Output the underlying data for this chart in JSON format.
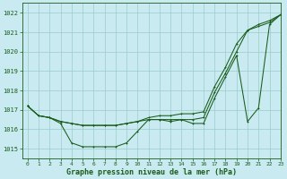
{
  "title": "Graphe pression niveau de la mer (hPa)",
  "bg_color": "#c8eaf0",
  "grid_color": "#99cccc",
  "line_color": "#1a5c1a",
  "marker_color": "#1a5c1a",
  "xlim": [
    -0.5,
    23
  ],
  "ylim": [
    1014.5,
    1022.5
  ],
  "xticks": [
    0,
    1,
    2,
    3,
    4,
    5,
    6,
    7,
    8,
    9,
    10,
    11,
    12,
    13,
    14,
    15,
    16,
    17,
    18,
    19,
    20,
    21,
    22,
    23
  ],
  "yticks": [
    1015,
    1016,
    1017,
    1018,
    1019,
    1020,
    1021,
    1022
  ],
  "series1_x": [
    0,
    1,
    2,
    3,
    4,
    5,
    6,
    7,
    8,
    9,
    10,
    11,
    12,
    13,
    14,
    15,
    16,
    17,
    18,
    19,
    20,
    21,
    22,
    23
  ],
  "series1_y": [
    1017.2,
    1016.7,
    1016.6,
    1016.4,
    1016.3,
    1016.2,
    1016.2,
    1016.2,
    1016.2,
    1016.3,
    1016.4,
    1016.5,
    1016.5,
    1016.5,
    1016.5,
    1016.5,
    1016.6,
    1017.9,
    1018.9,
    1020.0,
    1021.1,
    1021.3,
    1021.5,
    1021.9
  ],
  "series2_x": [
    0,
    1,
    2,
    3,
    4,
    5,
    6,
    7,
    8,
    9,
    10,
    11,
    12,
    13,
    14,
    15,
    16,
    17,
    18,
    19,
    20,
    21,
    22,
    23
  ],
  "series2_y": [
    1017.2,
    1016.7,
    1016.6,
    1016.4,
    1016.3,
    1016.2,
    1016.2,
    1016.2,
    1016.2,
    1016.3,
    1016.4,
    1016.6,
    1016.7,
    1016.7,
    1016.8,
    1016.8,
    1016.9,
    1018.2,
    1019.2,
    1020.4,
    1021.1,
    1021.4,
    1021.6,
    1021.9
  ],
  "series3_x": [
    0,
    1,
    2,
    3,
    4,
    5,
    6,
    7,
    8,
    9,
    10,
    11,
    12,
    13,
    14,
    15,
    16,
    17,
    18,
    19,
    20,
    21,
    22,
    23
  ],
  "series3_y": [
    1017.2,
    1016.7,
    1016.6,
    1016.3,
    1015.3,
    1015.1,
    1015.1,
    1015.1,
    1015.1,
    1015.3,
    1015.9,
    1016.5,
    1016.5,
    1016.4,
    1016.5,
    1016.3,
    1016.3,
    1017.6,
    1018.7,
    1019.8,
    1016.4,
    1017.1,
    1021.4,
    1021.9
  ]
}
